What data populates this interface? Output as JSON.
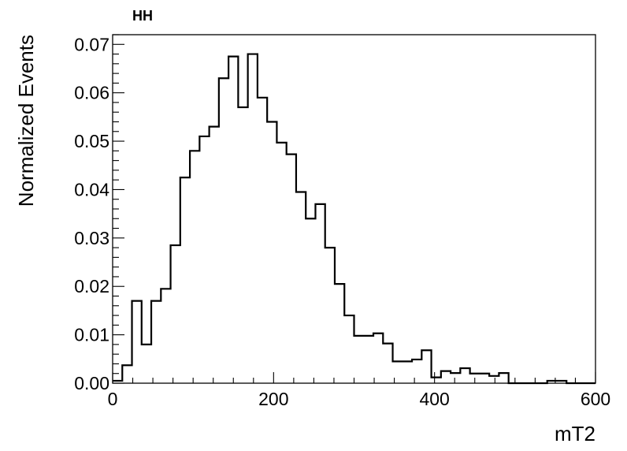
{
  "chart_data": {
    "type": "histogram",
    "title": "HH",
    "xlabel": "mT2",
    "ylabel": "Normalized Events",
    "xlim": [
      0,
      600
    ],
    "ylim": [
      0,
      0.072
    ],
    "bin_width": 12,
    "x_ticks": [
      "0",
      "200",
      "400",
      "600"
    ],
    "y_ticks": [
      "0.00",
      "0.01",
      "0.02",
      "0.03",
      "0.04",
      "0.05",
      "0.06",
      "0.07"
    ],
    "values": [
      0.0005,
      0.0037,
      0.017,
      0.008,
      0.017,
      0.0195,
      0.0285,
      0.0425,
      0.048,
      0.051,
      0.053,
      0.063,
      0.0675,
      0.057,
      0.068,
      0.059,
      0.054,
      0.0497,
      0.0473,
      0.0395,
      0.034,
      0.037,
      0.028,
      0.0205,
      0.014,
      0.0098,
      0.0098,
      0.0103,
      0.0082,
      0.0045,
      0.0045,
      0.0049,
      0.0068,
      0.0012,
      0.0025,
      0.0021,
      0.0031,
      0.002,
      0.002,
      0.0015,
      0.0021,
      0.0,
      0.0,
      0.0,
      0.0,
      0.0005,
      0.0005,
      0.0,
      0.0,
      0.0
    ],
    "line_color": "#000000",
    "grid": false,
    "legend": "none"
  }
}
